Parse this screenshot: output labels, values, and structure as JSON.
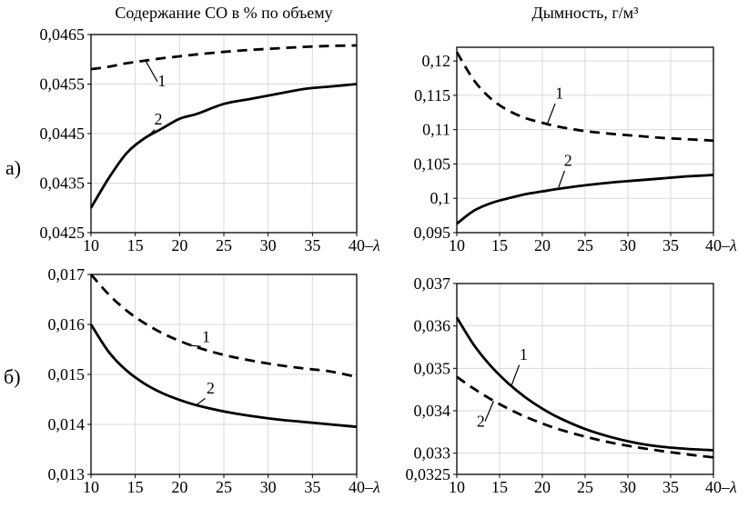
{
  "figure": {
    "row_labels": [
      "а)",
      "б)"
    ]
  },
  "chart_data": [
    {
      "type": "line",
      "title": "Содержание СО в % по объему",
      "xlabel": "–λ",
      "grid": true,
      "legend_position": "inline-labels",
      "xlim": [
        10,
        40
      ],
      "ylim": [
        0.0425,
        0.0465
      ],
      "xticks": [
        10,
        15,
        20,
        25,
        30,
        35,
        40
      ],
      "yticks": [
        {
          "v": 0.0465,
          "label": "0,0465"
        },
        {
          "v": 0.0455,
          "label": "0,0455"
        },
        {
          "v": 0.0445,
          "label": "0,0445"
        },
        {
          "v": 0.0435,
          "label": "0,0435"
        },
        {
          "v": 0.0425,
          "label": "0,0425"
        }
      ],
      "series": [
        {
          "name": "1",
          "style": "dashed",
          "x": [
            10,
            12,
            14,
            16,
            18,
            20,
            22,
            25,
            28,
            31,
            34,
            37,
            40
          ],
          "y": [
            0.0458,
            0.04585,
            0.04592,
            0.04597,
            0.04602,
            0.04606,
            0.0461,
            0.04615,
            0.04619,
            0.04622,
            0.04625,
            0.04627,
            0.04628
          ],
          "label_at": [
            18,
            0.04545
          ],
          "leader": [
            [
              17.5,
              0.04555
            ],
            [
              16.2,
              0.04596
            ]
          ]
        },
        {
          "name": "2",
          "style": "solid",
          "x": [
            10,
            12,
            14,
            16,
            18,
            20,
            22,
            25,
            28,
            31,
            34,
            37,
            40
          ],
          "y": [
            0.043,
            0.0436,
            0.0441,
            0.0444,
            0.0446,
            0.0448,
            0.0449,
            0.0451,
            0.0452,
            0.0453,
            0.0454,
            0.04545,
            0.0455
          ],
          "label_at": [
            17.6,
            0.04468
          ],
          "leader": [
            [
              17.2,
              0.04458
            ],
            [
              16.3,
              0.04443
            ]
          ]
        }
      ]
    },
    {
      "type": "line",
      "title": "Дымность, г/м³",
      "xlabel": "–λ",
      "grid": true,
      "legend_position": "inline-labels",
      "xlim": [
        10,
        40
      ],
      "ylim": [
        0.095,
        0.122
      ],
      "xticks": [
        10,
        15,
        20,
        25,
        30,
        35,
        40
      ],
      "yticks": [
        {
          "v": 0.12,
          "label": "0,12"
        },
        {
          "v": 0.115,
          "label": "0,115"
        },
        {
          "v": 0.11,
          "label": "0,11"
        },
        {
          "v": 0.105,
          "label": "0,105"
        },
        {
          "v": 0.1,
          "label": "0,1"
        },
        {
          "v": 0.095,
          "label": "0,095"
        }
      ],
      "series": [
        {
          "name": "1",
          "style": "dashed",
          "x": [
            10,
            12,
            14,
            16,
            18,
            20,
            22,
            25,
            28,
            31,
            34,
            37,
            40
          ],
          "y": [
            0.1213,
            0.1172,
            0.1145,
            0.1128,
            0.1117,
            0.111,
            0.1104,
            0.1098,
            0.1094,
            0.1091,
            0.1088,
            0.1086,
            0.1084
          ],
          "label_at": [
            22,
            0.1145
          ],
          "leader": [
            [
              21.5,
              0.1138
            ],
            [
              20.6,
              0.1109
            ]
          ]
        },
        {
          "name": "2",
          "style": "solid",
          "x": [
            10,
            12,
            14,
            16,
            18,
            20,
            22,
            25,
            28,
            31,
            34,
            37,
            40
          ],
          "y": [
            0.0963,
            0.0982,
            0.0993,
            0.1,
            0.1006,
            0.101,
            0.1014,
            0.1019,
            0.1023,
            0.1026,
            0.1029,
            0.1032,
            0.1034
          ],
          "label_at": [
            23,
            0.1047
          ],
          "leader": [
            [
              22.6,
              0.104
            ],
            [
              21.9,
              0.1016
            ]
          ]
        }
      ]
    },
    {
      "type": "line",
      "title": "",
      "xlabel": "–λ",
      "grid": true,
      "legend_position": "inline-labels",
      "xlim": [
        10,
        40
      ],
      "ylim": [
        0.013,
        0.017
      ],
      "xticks": [
        10,
        15,
        20,
        25,
        30,
        35,
        40
      ],
      "yticks": [
        {
          "v": 0.017,
          "label": "0,017"
        },
        {
          "v": 0.016,
          "label": "0,016"
        },
        {
          "v": 0.015,
          "label": "0,015"
        },
        {
          "v": 0.014,
          "label": "0,014"
        },
        {
          "v": 0.013,
          "label": "0,013"
        }
      ],
      "series": [
        {
          "name": "1",
          "style": "dashed",
          "x": [
            10,
            12,
            14,
            16,
            18,
            20,
            22,
            25,
            28,
            31,
            34,
            37,
            40
          ],
          "y": [
            0.017,
            0.0166,
            0.01628,
            0.01603,
            0.01583,
            0.01567,
            0.01554,
            0.01539,
            0.01528,
            0.01519,
            0.01512,
            0.01506,
            0.01495
          ],
          "label_at": [
            23,
            0.01565
          ],
          "leader": [
            [
              22.4,
              0.01556
            ],
            [
              21.2,
              0.01558
            ]
          ]
        },
        {
          "name": "2",
          "style": "solid",
          "x": [
            10,
            12,
            14,
            16,
            18,
            20,
            22,
            25,
            28,
            31,
            34,
            37,
            40
          ],
          "y": [
            0.016,
            0.01545,
            0.01508,
            0.01482,
            0.01463,
            0.01449,
            0.01438,
            0.01426,
            0.01417,
            0.0141,
            0.01405,
            0.014,
            0.01395
          ],
          "label_at": [
            23.5,
            0.01462
          ],
          "leader": [
            [
              22.9,
              0.01452
            ],
            [
              21.9,
              0.01439
            ]
          ]
        }
      ]
    },
    {
      "type": "line",
      "title": "",
      "xlabel": "–λ",
      "grid": true,
      "legend_position": "inline-labels",
      "xlim": [
        10,
        40
      ],
      "ylim": [
        0.0325,
        0.037
      ],
      "xticks": [
        10,
        15,
        20,
        25,
        30,
        35,
        40
      ],
      "yticks": [
        {
          "v": 0.037,
          "label": "0,037"
        },
        {
          "v": 0.036,
          "label": "0,036"
        },
        {
          "v": 0.035,
          "label": "0,035"
        },
        {
          "v": 0.034,
          "label": "0,034"
        },
        {
          "v": 0.033,
          "label": "0,033"
        },
        {
          "v": 0.0325,
          "label": "0,0325"
        }
      ],
      "series": [
        {
          "name": "1",
          "style": "solid",
          "x": [
            10,
            12,
            14,
            16,
            18,
            20,
            22,
            25,
            28,
            31,
            34,
            37,
            40
          ],
          "y": [
            0.0362,
            0.03555,
            0.03505,
            0.03465,
            0.03432,
            0.03405,
            0.03383,
            0.03357,
            0.03338,
            0.03324,
            0.03315,
            0.0331,
            0.03307
          ],
          "label_at": [
            17.8,
            0.0352
          ],
          "leader": [
            [
              17.3,
              0.03508
            ],
            [
              16.4,
              0.0346
            ]
          ]
        },
        {
          "name": "2",
          "style": "dashed",
          "x": [
            10,
            12,
            14,
            16,
            18,
            20,
            22,
            25,
            28,
            31,
            34,
            37,
            40
          ],
          "y": [
            0.0348,
            0.03452,
            0.03427,
            0.03405,
            0.03386,
            0.0337,
            0.03356,
            0.03339,
            0.03325,
            0.03314,
            0.03305,
            0.03297,
            0.0329
          ],
          "label_at": [
            12.8,
            0.03362
          ],
          "leader": [
            [
              13.3,
              0.03375
            ],
            [
              14.3,
              0.03423
            ]
          ]
        }
      ]
    }
  ],
  "style": {
    "curve_color": "#000000",
    "grid_color": "#d9d9d9"
  }
}
